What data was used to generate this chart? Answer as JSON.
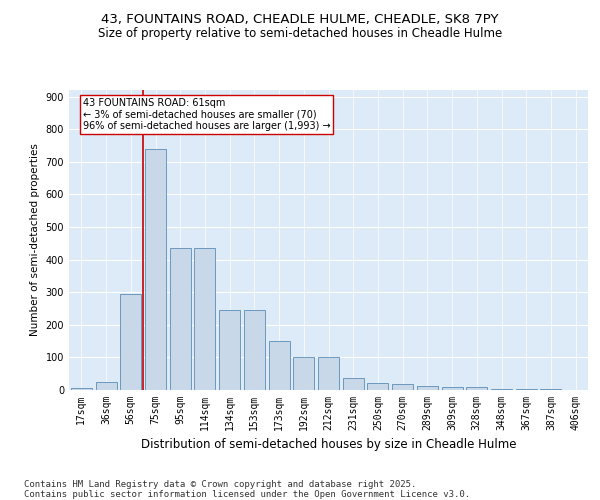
{
  "title1": "43, FOUNTAINS ROAD, CHEADLE HULME, CHEADLE, SK8 7PY",
  "title2": "Size of property relative to semi-detached houses in Cheadle Hulme",
  "xlabel": "Distribution of semi-detached houses by size in Cheadle Hulme",
  "ylabel": "Number of semi-detached properties",
  "footer1": "Contains HM Land Registry data © Crown copyright and database right 2025.",
  "footer2": "Contains public sector information licensed under the Open Government Licence v3.0.",
  "bar_labels": [
    "17sqm",
    "36sqm",
    "56sqm",
    "75sqm",
    "95sqm",
    "114sqm",
    "134sqm",
    "153sqm",
    "173sqm",
    "192sqm",
    "212sqm",
    "231sqm",
    "250sqm",
    "270sqm",
    "289sqm",
    "309sqm",
    "328sqm",
    "348sqm",
    "367sqm",
    "387sqm",
    "406sqm"
  ],
  "bar_values": [
    5,
    25,
    295,
    740,
    435,
    435,
    245,
    245,
    150,
    100,
    100,
    37,
    20,
    18,
    12,
    8,
    8,
    4,
    3,
    2,
    1
  ],
  "bar_color": "#c8d8e8",
  "bar_edge_color": "#5b8db8",
  "annotation_text": "43 FOUNTAINS ROAD: 61sqm\n← 3% of semi-detached houses are smaller (70)\n96% of semi-detached houses are larger (1,993) →",
  "vline_x": 2.5,
  "vline_color": "#cc0000",
  "annotation_box_color": "#ffffff",
  "annotation_box_edge": "#cc0000",
  "ylim": [
    0,
    920
  ],
  "yticks": [
    0,
    100,
    200,
    300,
    400,
    500,
    600,
    700,
    800,
    900
  ],
  "bg_color": "#ddeaf7",
  "title1_fontsize": 9.5,
  "title2_fontsize": 8.5,
  "xlabel_fontsize": 8.5,
  "ylabel_fontsize": 7.5,
  "tick_fontsize": 7,
  "annot_fontsize": 7,
  "footer_fontsize": 6.5
}
